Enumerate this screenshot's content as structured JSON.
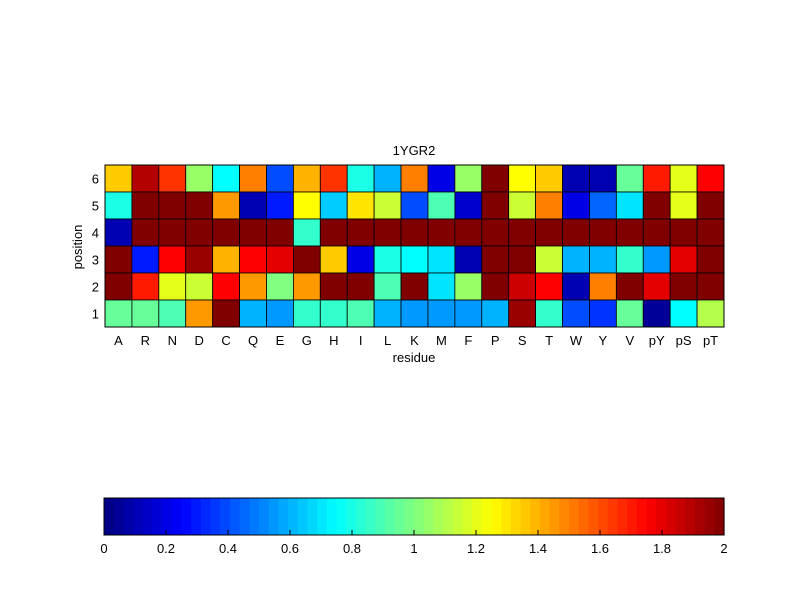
{
  "chart_data": [
    {
      "type": "heatmap",
      "title": "1YGR2",
      "xlabel": "residue",
      "ylabel": "position",
      "x_categories": [
        "A",
        "R",
        "N",
        "D",
        "C",
        "Q",
        "E",
        "G",
        "H",
        "I",
        "L",
        "K",
        "M",
        "F",
        "P",
        "S",
        "T",
        "W",
        "Y",
        "V",
        "pY",
        "pS",
        "pT"
      ],
      "y_categories": [
        "6",
        "5",
        "4",
        "3",
        "2",
        "1"
      ],
      "values": [
        [
          1.35,
          1.9,
          1.65,
          1.05,
          0.75,
          1.5,
          0.4,
          1.4,
          1.65,
          0.8,
          0.6,
          1.5,
          0.2,
          1.05,
          2.0,
          1.25,
          1.35,
          0.1,
          0.1,
          0.95,
          1.7,
          1.2,
          1.75
        ],
        [
          0.8,
          2.0,
          2.0,
          2.0,
          1.45,
          0.1,
          0.3,
          1.25,
          0.65,
          1.3,
          1.15,
          0.4,
          0.9,
          0.15,
          2.0,
          1.15,
          1.5,
          0.2,
          0.45,
          0.7,
          2.0,
          1.2,
          2.0
        ],
        [
          0.1,
          2.0,
          2.0,
          2.0,
          2.0,
          2.0,
          2.0,
          0.85,
          2.0,
          2.0,
          2.0,
          2.0,
          2.0,
          2.0,
          2.0,
          2.0,
          2.0,
          2.0,
          2.0,
          2.0,
          2.0,
          2.0,
          2.0
        ],
        [
          2.0,
          0.3,
          1.75,
          1.95,
          1.4,
          1.75,
          1.8,
          2.0,
          1.35,
          0.2,
          0.8,
          0.75,
          0.7,
          0.1,
          2.0,
          2.0,
          1.15,
          0.6,
          0.6,
          0.85,
          0.55,
          1.8,
          2.0
        ],
        [
          2.0,
          1.7,
          1.2,
          1.15,
          1.75,
          1.45,
          1.0,
          1.45,
          2.0,
          2.0,
          0.9,
          2.0,
          0.7,
          1.05,
          2.0,
          1.85,
          1.75,
          0.1,
          1.5,
          2.0,
          1.8,
          2.0,
          2.0
        ],
        [
          0.95,
          0.95,
          0.9,
          1.45,
          2.0,
          0.6,
          0.55,
          0.85,
          0.85,
          0.9,
          0.6,
          0.55,
          0.55,
          0.55,
          0.6,
          1.95,
          0.85,
          0.4,
          0.35,
          0.95,
          0.05,
          0.75,
          1.1
        ]
      ]
    },
    {
      "type": "colorbar",
      "range": [
        0,
        2
      ],
      "ticks": [
        "0",
        "0.2",
        "0.4",
        "0.6",
        "0.8",
        "1",
        "1.2",
        "1.4",
        "1.6",
        "1.8",
        "2"
      ],
      "colormap": "jet"
    }
  ]
}
